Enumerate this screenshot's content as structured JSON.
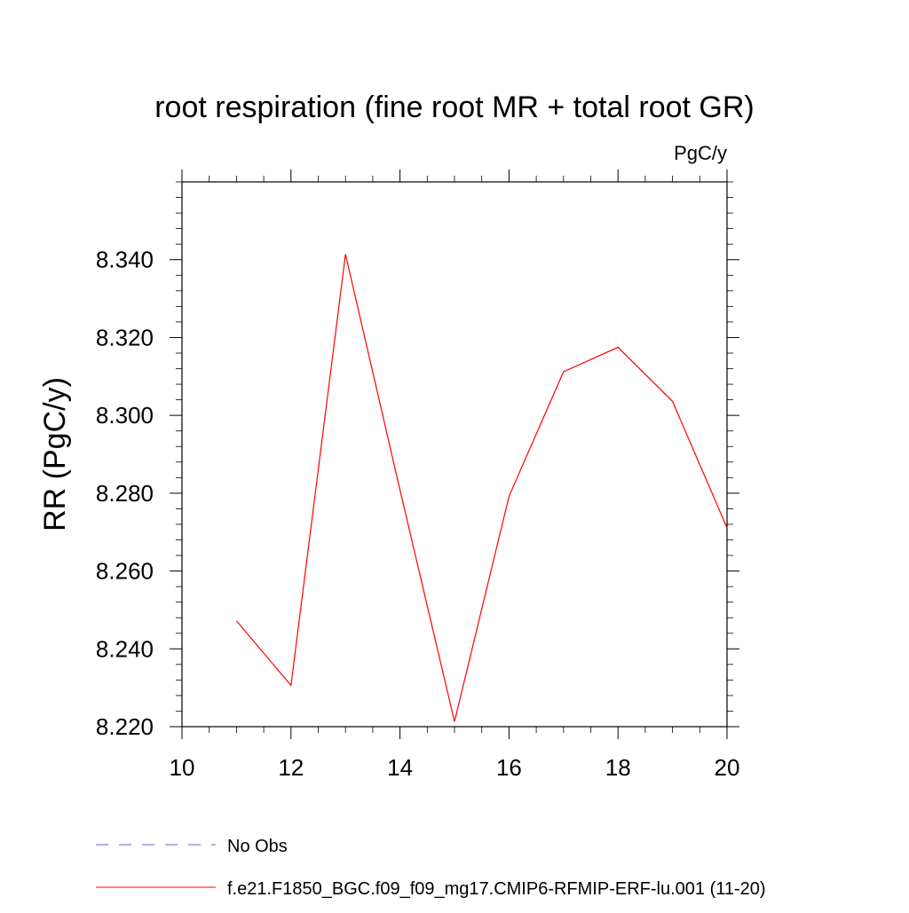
{
  "chart_data": {
    "type": "line",
    "title": "root respiration (fine root MR + total root GR)",
    "units_label": "PgC/y",
    "ylabel": "RR  (PgC/y)",
    "xlabel": "",
    "xlim": [
      10,
      20
    ],
    "ylim": [
      8.22,
      8.36
    ],
    "x_ticks": [
      10,
      12,
      14,
      16,
      18,
      20
    ],
    "x_tick_labels": [
      "10",
      "12",
      "14",
      "16",
      "18",
      "20"
    ],
    "y_ticks": [
      8.22,
      8.24,
      8.26,
      8.28,
      8.3,
      8.32,
      8.34
    ],
    "y_tick_labels": [
      "8.220",
      "8.240",
      "8.260",
      "8.280",
      "8.300",
      "8.320",
      "8.340"
    ],
    "grid": false,
    "legend_position": "bottom",
    "series": [
      {
        "name": "f.e21.F1850_BGC.f09_f09_mg17.CMIP6-RFMIP-ERF-lu.001 (11-20)",
        "color": "#ff0000",
        "dash": "solid",
        "x": [
          11,
          12,
          13,
          14,
          15,
          16,
          17,
          18,
          19,
          20
        ],
        "values": [
          8.2472,
          8.2306,
          8.3414,
          8.2808,
          8.2213,
          8.2792,
          8.3112,
          8.3175,
          8.3036,
          8.2711
        ]
      }
    ],
    "legend": [
      {
        "label": "No Obs",
        "color": "#6a5acd",
        "dash": "dashed"
      },
      {
        "label": "f.e21.F1850_BGC.f09_f09_mg17.CMIP6-RFMIP-ERF-lu.001 (11-20)",
        "color": "#ff0000",
        "dash": "solid"
      }
    ]
  }
}
